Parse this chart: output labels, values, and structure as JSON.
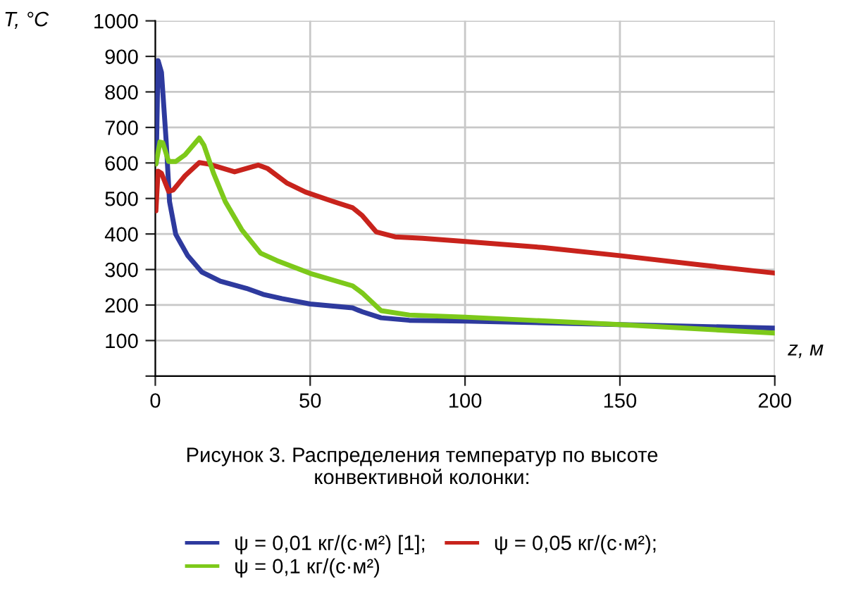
{
  "chart_data": {
    "type": "line",
    "xlabel": "z, м",
    "ylabel": "T, °C",
    "xlim": [
      0,
      200
    ],
    "xticks": [
      0,
      50,
      100,
      150,
      200
    ],
    "ylim": [
      0,
      1000
    ],
    "yticks": [
      {
        "value": 0,
        "label": null
      },
      100,
      200,
      300,
      400,
      500,
      600,
      700,
      800,
      900,
      1000
    ],
    "grid": true,
    "legend": "bottom",
    "marker": "none",
    "line_style": "solid",
    "annotations": [
      "Рисунок 3. Распределения температур по высоте конвективной колонки:"
    ],
    "series": [
      {
        "name": "ψ = 0,01 кг/(с·м²) [1];",
        "color": "#2e3a9e",
        "x": [
          0.3,
          0.9,
          2,
          3.5,
          4.6,
          6.6,
          10.4,
          15,
          21,
          29.4,
          34.8,
          40.9,
          50,
          63.7,
          66.8,
          72.9,
          82,
          100,
          150,
          200
        ],
        "values": [
          600,
          888,
          855,
          663,
          491,
          399,
          340,
          293,
          267,
          247,
          230,
          218,
          203,
          192,
          181,
          164,
          157,
          155,
          145,
          135
        ]
      },
      {
        "name": "ψ = 0,05 кг/(с·м²);",
        "color": "#c8231c",
        "x": [
          0.2,
          0.9,
          2,
          4.3,
          5.8,
          9.6,
          14.2,
          17.2,
          25.6,
          33.2,
          36.3,
          42.4,
          48.5,
          57.6,
          63.7,
          66.8,
          71.3,
          77.4,
          86.3,
          100,
          125,
          150,
          176,
          200
        ],
        "values": [
          465,
          577,
          571,
          520,
          524,
          564,
          601,
          597,
          575,
          594,
          584,
          544,
          518,
          491,
          474,
          452,
          406,
          392,
          388,
          379,
          362,
          339,
          313,
          290
        ]
      },
      {
        "name": "ψ = 0,1 кг/(с·м²)",
        "color": "#7dc91a",
        "x": [
          0.2,
          1.5,
          2.4,
          4.3,
          6.6,
          9.6,
          14.2,
          15.7,
          18.8,
          22.6,
          27.9,
          34,
          39.3,
          50,
          63.7,
          66.8,
          72.9,
          82,
          100,
          150,
          200
        ],
        "values": [
          597,
          659,
          657,
          604,
          604,
          623,
          670,
          650,
          571,
          491,
          412,
          346,
          325,
          289,
          254,
          234,
          184,
          172,
          166,
          145,
          121
        ]
      }
    ]
  }
}
